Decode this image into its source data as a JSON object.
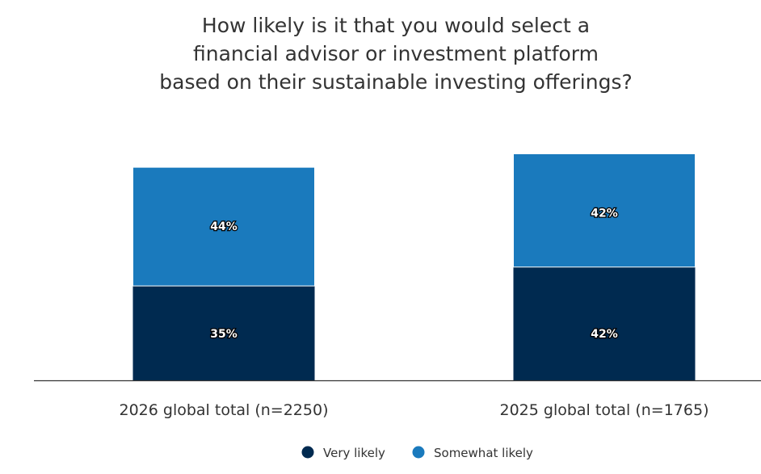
{
  "chart_data": {
    "type": "bar",
    "stacked": true,
    "title": "How likely is it that you would select a financial advisor or investment platform based on their sustainable investing offerings?",
    "title_lines": [
      "How likely is it that you would select a",
      "financial advisor or investment platform",
      "based on their sustainable investing offerings?"
    ],
    "categories": [
      "2026 global total (n=2250)",
      "2025 global total (n=1765)"
    ],
    "series": [
      {
        "name": "Very likely",
        "values": [
          35,
          42
        ],
        "color": "#002a50"
      },
      {
        "name": "Somewhat likely",
        "values": [
          44,
          42
        ],
        "color": "#1a7abd"
      }
    ],
    "ylim": [
      0,
      100
    ],
    "grid": false,
    "legend": "bottom",
    "data_label_suffix": "%"
  }
}
